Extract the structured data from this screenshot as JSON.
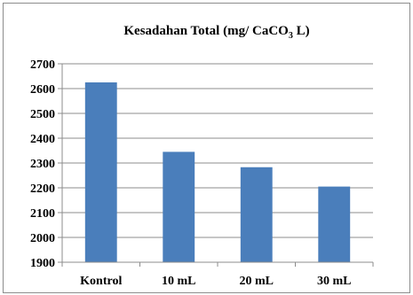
{
  "chart_data": {
    "type": "bar",
    "title": "Kesadahan Total (mg/ CaCO",
    "title_subscript": "3",
    "title_suffix": " L)",
    "categories": [
      "Kontrol",
      "10 mL",
      "20 mL",
      "30 mL"
    ],
    "values": [
      2625,
      2345,
      2283,
      2205
    ],
    "ylim": [
      1900,
      2700
    ],
    "yticks": [
      1900,
      2000,
      2100,
      2200,
      2300,
      2400,
      2500,
      2600,
      2700
    ],
    "xlabel": "",
    "ylabel": "",
    "grid": true,
    "legend": "none",
    "bar_color": "#4a7ebb",
    "grid_color": "#8c8c8c"
  }
}
